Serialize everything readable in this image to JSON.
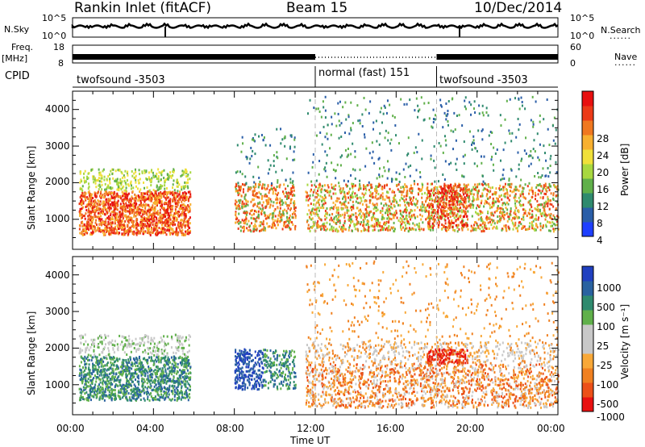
{
  "header": {
    "title": "Rankin Inlet (fitACF)",
    "beam": "Beam 15",
    "date": "10/Dec/2014"
  },
  "left_labels": {
    "nsky": "N.Sky",
    "freq_top": "Freq.",
    "freq_unit": "[MHz]",
    "cpid": "CPID"
  },
  "right_labels": {
    "nsearch": "N.Search",
    "nave": "Nave",
    "dots": "......"
  },
  "noise_axis": {
    "left_ticks": [
      "10^5",
      "10^0"
    ],
    "right_ticks": [
      "10^5",
      "10^0"
    ]
  },
  "freq_axis": {
    "left_ticks": [
      "18",
      "8"
    ],
    "right_ticks": [
      "60",
      "0"
    ]
  },
  "cpid_segments": [
    {
      "name": "twofsound",
      "id": "-3503",
      "start_hour": 0,
      "end_hour": 12
    },
    {
      "name": "normal (fast)",
      "id": "151",
      "start_hour": 12,
      "end_hour": 18
    },
    {
      "name": "twofsound",
      "id": "-3503",
      "start_hour": 18,
      "end_hour": 24
    }
  ],
  "chart_data": [
    {
      "type": "heatmap",
      "title": "",
      "ylabel": "Slant Range [km]",
      "xlabel": "",
      "xlim_hours": [
        0,
        24
      ],
      "ylim": [
        180,
        4500
      ],
      "yticks": [
        1000,
        2000,
        3000,
        4000
      ],
      "colorbar": {
        "label": "Power [dB]",
        "ticks": [
          "28",
          "24",
          "20",
          "16",
          "12",
          "8",
          "4"
        ],
        "range": [
          0,
          30
        ],
        "colors": [
          "#1e3fff",
          "#2a5ea8",
          "#2f8a6e",
          "#60b04a",
          "#a8d840",
          "#f0e03a",
          "#f8b030",
          "#f07820",
          "#ec3a18",
          "#e81010"
        ]
      }
    },
    {
      "type": "heatmap",
      "title": "",
      "ylabel": "Slant Range [km]",
      "xlabel": "Time UT",
      "xlim_hours": [
        0,
        24
      ],
      "ylim": [
        180,
        4500
      ],
      "yticks": [
        1000,
        2000,
        3000,
        4000
      ],
      "xtick_labels": [
        "00:00",
        "04:00",
        "08:00",
        "12:00",
        "16:00",
        "20:00",
        "00:00"
      ],
      "colorbar": {
        "label": "Velocity [m s⁻¹]",
        "ticks": [
          "1000",
          "500",
          "100",
          "25",
          "-25",
          "-100",
          "-500",
          "-1000"
        ],
        "colors": [
          "#2040c0",
          "#2a62a0",
          "#2f8a6e",
          "#60b04a",
          "#c8c8c8",
          "#c8c8c8",
          "#f8a838",
          "#f08020",
          "#ec5018",
          "#e81010"
        ]
      }
    }
  ]
}
